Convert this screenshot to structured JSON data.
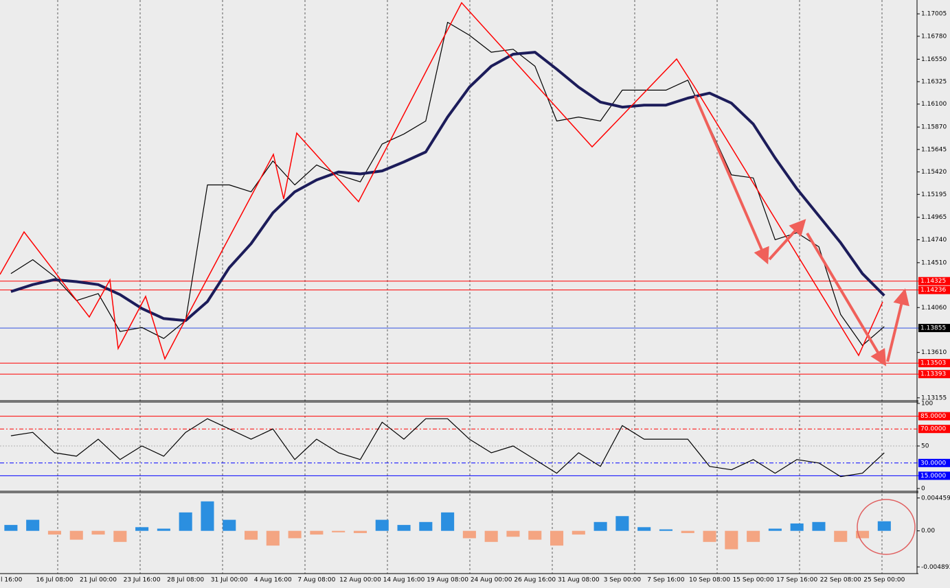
{
  "chart_data": [
    {
      "type": "line",
      "categories": [
        "l 16:00",
        null,
        "16 Jul 08:00",
        null,
        "21 Jul 00:00",
        null,
        "23 Jul 16:00",
        null,
        "28 Jul 08:00",
        null,
        "31 Jul 00:00",
        null,
        "4 Aug 16:00",
        null,
        "7 Aug 08:00",
        null,
        "12 Aug 00:00",
        null,
        "14 Aug 16:00",
        null,
        "19 Aug 08:00",
        null,
        "24 Aug 00:00",
        null,
        "26 Aug 16:00",
        null,
        "31 Aug 08:00",
        null,
        "3 Sep 00:00",
        null,
        "7 Sep 16:00",
        null,
        "10 Sep 08:00",
        null,
        "15 Sep 00:00",
        null,
        "17 Sep 16:00",
        null,
        "22 Sep 08:00",
        null,
        "25 Sep 00:00",
        null
      ],
      "ylim": [
        1.1314,
        1.1713
      ],
      "yticks": [
        1.17005,
        {
          "value": 1.1678,
          "label": "1.16780"
        },
        {
          "value": 1.1655,
          "label": "1.16550"
        },
        1.16325,
        {
          "value": 1.161,
          "label": "1.16100"
        },
        {
          "value": 1.1587,
          "label": "1.15870"
        },
        1.15645,
        {
          "value": 1.1542,
          "label": "1.15420"
        },
        1.15195,
        1.14965,
        {
          "value": 1.1474,
          "label": "1.14740"
        },
        {
          "value": 1.1451,
          "label": "1.14510"
        },
        {
          "value": 1.1406,
          "label": "1.14060"
        },
        {
          "value": 1.1361,
          "label": "1.13610"
        },
        1.13155
      ],
      "hlines": [
        {
          "value": 1.14325,
          "color": "#ff0000"
        },
        {
          "value": 1.14236,
          "color": "#ff0000"
        },
        {
          "value": 1.13855,
          "color": "#3050e0",
          "box_color": "#000000"
        },
        {
          "value": 1.13503,
          "color": "#ff0000"
        },
        {
          "value": 1.13393,
          "color": "#ff0000"
        }
      ],
      "series": [
        {
          "color": "#000000",
          "values": [
            1.144,
            1.1454,
            1.1437,
            1.1413,
            1.142,
            1.1382,
            1.1386,
            1.1375,
            1.1393,
            1.1529,
            1.1529,
            1.1522,
            1.1553,
            1.1529,
            1.1549,
            1.1539,
            1.1532,
            1.157,
            1.158,
            1.1593,
            1.1692,
            1.1679,
            1.1662,
            1.1665,
            1.1648,
            1.1593,
            1.1597,
            1.1593,
            1.1624,
            1.1624,
            1.1624,
            1.1634,
            1.1587,
            1.1539,
            1.1536,
            1.1474,
            1.1481,
            1.1467,
            1.1399,
            1.1368,
            1.1387,
            null
          ]
        },
        {
          "color": "#1c1c5a",
          "values": [
            1.1422,
            1.1429,
            1.1434,
            1.1432,
            1.1429,
            1.1419,
            1.1405,
            1.1395,
            1.1393,
            1.1412,
            1.1446,
            1.147,
            1.1501,
            1.1522,
            1.1534,
            1.1542,
            1.154,
            1.1543,
            1.1552,
            1.1562,
            1.1597,
            1.1627,
            1.1648,
            1.166,
            1.1662,
            1.1645,
            1.1627,
            1.1612,
            1.1607,
            1.1609,
            1.1609,
            1.1616,
            1.1621,
            1.1611,
            1.159,
            1.1556,
            1.1525,
            1.1498,
            1.1471,
            1.144,
            1.1418,
            null
          ]
        }
      ]
    },
    {
      "type": "line",
      "ylim": [
        0,
        100
      ],
      "yticks": [
        100,
        50,
        0
      ],
      "hlines": [
        {
          "value": 85,
          "label": "85.0000",
          "color": "#ff0000"
        },
        {
          "value": 70,
          "label": "70.0000",
          "color": "#ff0000",
          "dashed": true
        },
        {
          "value": 30,
          "label": "30.0000",
          "color": "#0000ff",
          "dashed": true
        },
        {
          "value": 15,
          "label": "15.0000",
          "color": "#0000ff"
        }
      ],
      "series": [
        {
          "color": "#000000",
          "values": [
            62,
            66,
            42,
            38,
            58,
            34,
            50,
            38,
            66,
            82,
            70,
            58,
            70,
            34,
            58,
            42,
            34,
            78,
            58,
            82,
            82,
            58,
            42,
            50,
            34,
            18,
            42,
            26,
            74,
            58,
            58,
            58,
            26,
            22,
            34,
            18,
            34,
            30,
            14,
            18,
            42,
            null
          ]
        }
      ]
    },
    {
      "type": "bar",
      "ylim": [
        -0.0058,
        0.005
      ],
      "yticks": [
        0.0044593,
        {
          "value": 0,
          "label": "0.00"
        },
        -0.004893
      ],
      "series": [
        {
          "color": "#2b8fe0",
          "negative_color": "#f4a582",
          "values": [
            0.0008,
            0.0015,
            -0.0005,
            -0.0012,
            -0.0005,
            -0.0015,
            0.0005,
            0.0003,
            0.0025,
            0.004,
            0.0015,
            -0.0012,
            -0.002,
            -0.001,
            -0.0005,
            -0.0002,
            -0.0003,
            0.0015,
            0.0008,
            0.0012,
            0.0025,
            -0.001,
            -0.0015,
            -0.0008,
            -0.0012,
            -0.002,
            -0.0005,
            0.0012,
            0.002,
            0.0005,
            0.0002,
            -0.0003,
            -0.0015,
            -0.0025,
            -0.0015,
            0.0003,
            0.001,
            0.0012,
            -0.0015,
            -0.001,
            0.0013,
            null
          ]
        }
      ]
    }
  ]
}
